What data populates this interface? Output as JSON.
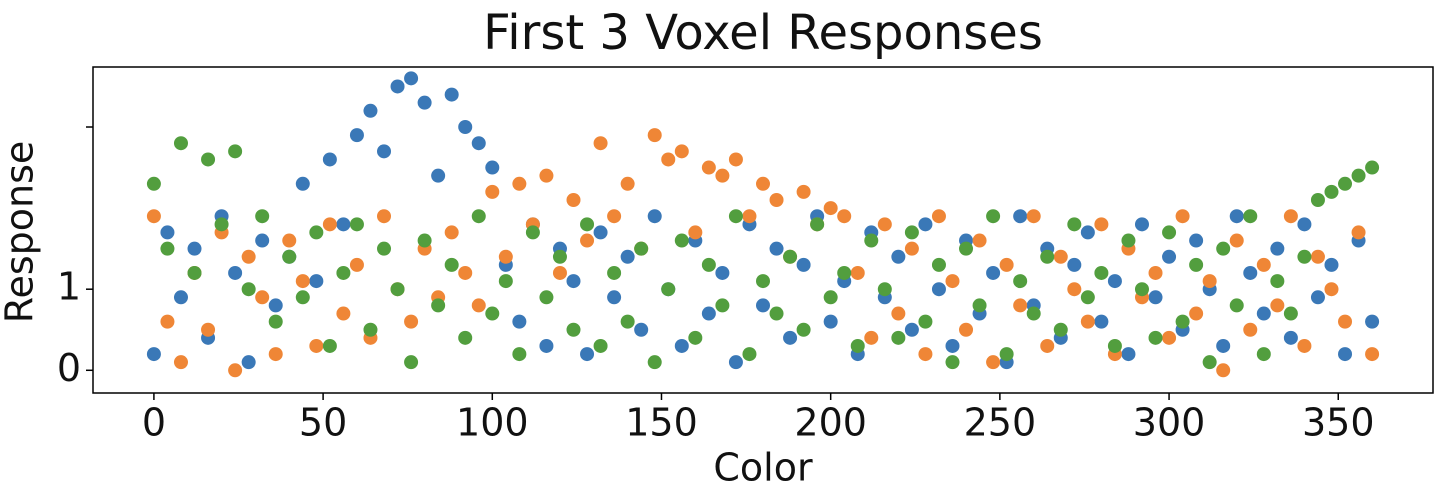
{
  "chart_data": {
    "type": "scatter",
    "title": "First 3 Voxel Responses",
    "x_label": "Color",
    "y_label": "Response",
    "x": [
      0,
      4,
      8,
      12,
      16,
      20,
      24,
      28,
      32,
      36,
      40,
      44,
      48,
      52,
      56,
      60,
      64,
      68,
      72,
      76,
      80,
      84,
      88,
      92,
      96,
      100,
      104,
      108,
      112,
      116,
      120,
      124,
      128,
      132,
      136,
      140,
      144,
      148,
      152,
      156,
      160,
      164,
      168,
      172,
      176,
      180,
      184,
      188,
      192,
      196,
      200,
      204,
      208,
      212,
      216,
      220,
      224,
      228,
      232,
      236,
      240,
      244,
      248,
      252,
      256,
      260,
      264,
      268,
      272,
      276,
      280,
      284,
      288,
      292,
      296,
      300,
      304,
      308,
      312,
      316,
      320,
      324,
      328,
      332,
      336,
      340,
      344,
      348,
      352,
      356,
      360
    ],
    "series": [
      {
        "color": "#3a78b7",
        "values": [
          0.2,
          1.7,
          0.9,
          1.5,
          0.4,
          1.9,
          1.2,
          0.1,
          1.6,
          0.8,
          1.4,
          2.3,
          1.1,
          2.6,
          1.8,
          2.9,
          3.2,
          2.7,
          3.5,
          3.6,
          3.3,
          2.4,
          3.4,
          3.0,
          2.8,
          2.5,
          1.3,
          0.6,
          1.8,
          0.3,
          1.5,
          1.1,
          0.2,
          1.7,
          0.9,
          1.4,
          0.5,
          1.9,
          1.0,
          0.3,
          1.6,
          0.7,
          1.2,
          0.1,
          1.8,
          0.8,
          1.5,
          0.4,
          1.3,
          1.9,
          0.6,
          1.1,
          0.2,
          1.7,
          0.9,
          1.4,
          0.5,
          1.8,
          1.0,
          0.3,
          1.6,
          0.7,
          1.2,
          0.1,
          1.9,
          0.8,
          1.5,
          0.4,
          1.3,
          1.7,
          0.6,
          1.1,
          0.2,
          1.8,
          0.9,
          1.4,
          0.5,
          1.6,
          1.0,
          0.3,
          1.9,
          1.2,
          0.7,
          1.5,
          0.4,
          1.8,
          0.9,
          1.3,
          0.2,
          1.6,
          0.6
        ]
      },
      {
        "color": "#ef8636",
        "values": [
          1.9,
          0.6,
          0.1,
          1.2,
          0.5,
          1.7,
          0.0,
          1.4,
          0.9,
          0.2,
          1.6,
          1.1,
          0.3,
          1.8,
          0.7,
          1.3,
          0.4,
          1.9,
          1.0,
          0.6,
          1.5,
          0.9,
          1.7,
          1.2,
          0.8,
          2.2,
          1.4,
          2.3,
          1.8,
          2.4,
          1.2,
          2.1,
          1.6,
          2.8,
          1.9,
          2.3,
          1.5,
          2.9,
          2.6,
          2.7,
          1.7,
          2.5,
          2.4,
          2.6,
          1.9,
          2.3,
          2.1,
          1.4,
          2.2,
          1.8,
          2.0,
          1.9,
          1.2,
          0.4,
          1.8,
          0.7,
          1.5,
          0.2,
          1.9,
          1.1,
          0.5,
          1.6,
          0.1,
          1.3,
          0.8,
          1.9,
          0.3,
          1.4,
          1.0,
          0.6,
          1.8,
          0.2,
          1.5,
          0.9,
          1.2,
          0.4,
          1.9,
          0.7,
          1.1,
          0.0,
          1.6,
          0.5,
          1.3,
          0.8,
          1.9,
          0.3,
          1.4,
          1.0,
          0.6,
          1.7,
          0.2
        ]
      },
      {
        "color": "#529e3e",
        "values": [
          2.3,
          1.5,
          2.8,
          1.2,
          2.6,
          1.8,
          2.7,
          1.0,
          1.9,
          0.6,
          1.4,
          0.9,
          1.7,
          0.3,
          1.2,
          1.8,
          0.5,
          1.5,
          1.0,
          0.1,
          1.6,
          0.8,
          1.3,
          0.4,
          1.9,
          0.7,
          1.1,
          0.2,
          1.7,
          0.9,
          1.4,
          0.5,
          1.8,
          0.3,
          1.2,
          0.6,
          1.5,
          0.1,
          1.0,
          1.6,
          0.4,
          1.3,
          0.8,
          1.9,
          0.2,
          1.1,
          0.7,
          1.4,
          0.5,
          1.8,
          0.9,
          1.2,
          0.3,
          1.6,
          1.0,
          0.4,
          1.7,
          0.6,
          1.3,
          0.1,
          1.5,
          0.8,
          1.9,
          0.2,
          1.1,
          0.7,
          1.4,
          0.5,
          1.8,
          0.9,
          1.2,
          0.3,
          1.6,
          1.0,
          0.4,
          1.7,
          0.6,
          1.3,
          0.1,
          1.5,
          0.8,
          1.9,
          0.2,
          1.1,
          0.7,
          1.4,
          2.1,
          2.2,
          2.3,
          2.4,
          2.5
        ]
      }
    ],
    "xlim": [
      -18,
      378
    ],
    "xticks": [
      0,
      50,
      100,
      150,
      200,
      250,
      300,
      350
    ],
    "ylim": [
      -0.28,
      3.74
    ],
    "yticks": [
      0,
      1,
      {
        "value": 3,
        "label": null
      }
    ]
  }
}
